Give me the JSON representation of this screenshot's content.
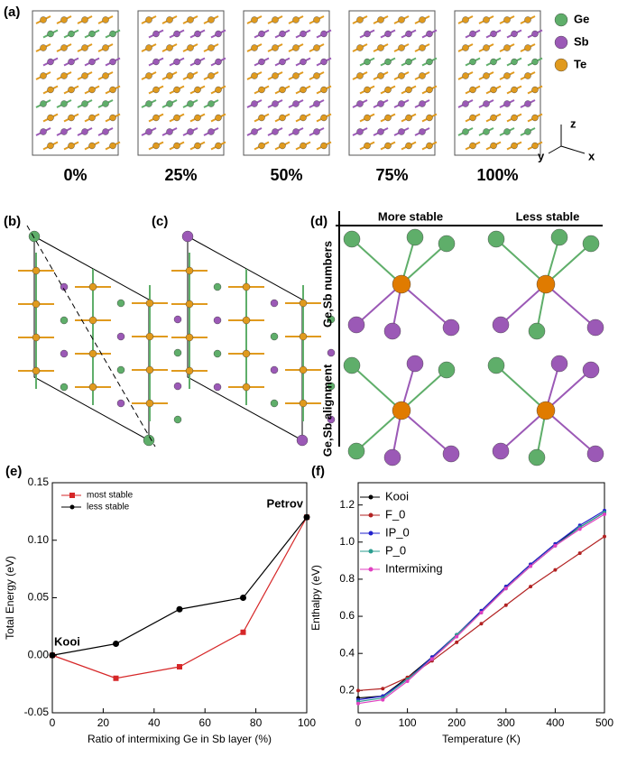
{
  "figure": {
    "panel_a": {
      "label": "(a)",
      "ratios": [
        "0%",
        "25%",
        "50%",
        "75%",
        "100%"
      ],
      "legend": [
        "Ge",
        "Sb",
        "Te"
      ],
      "axes": [
        "z",
        "y",
        "x"
      ]
    },
    "panel_b": {
      "label": "(b)"
    },
    "panel_c": {
      "label": "(c)"
    },
    "panel_d": {
      "label": "(d)",
      "columns": [
        "More stable",
        "Less stable"
      ],
      "rows": [
        "Ge,Sb numbers",
        "Ge,Sb alignment"
      ]
    }
  },
  "chart_data": [
    {
      "type": "line",
      "label": "(e)",
      "x_label": "Ratio of intermixing Ge in Sb layer (%)",
      "y_label": "Total Energy (eV)",
      "x": [
        0,
        25,
        50,
        75,
        100
      ],
      "series": [
        {
          "name": "most stable",
          "color": "#d62728",
          "marker": "square",
          "values": [
            0,
            -0.02,
            -0.01,
            0.02,
            0.12
          ]
        },
        {
          "name": "less stable",
          "color": "#000000",
          "marker": "circle",
          "values": [
            0,
            0.01,
            0.04,
            0.05,
            0.12
          ]
        }
      ],
      "annotations": [
        "Kooi",
        "Petrov"
      ],
      "xlim": [
        0,
        100
      ],
      "xticks": [
        0,
        20,
        40,
        60,
        80,
        100
      ],
      "ylim": [
        -0.05,
        0.15
      ],
      "yticks": [
        -0.05,
        {
          "value": 0,
          "label": "0.00"
        },
        0.05,
        {
          "value": 0.1,
          "label": "0.10"
        },
        0.15
      ],
      "legend": "upper left"
    },
    {
      "type": "line",
      "label": "(f)",
      "x_label": "Temperature (K)",
      "y_label": "Enthalpy (eV)",
      "x": [
        0,
        50,
        100,
        150,
        200,
        250,
        300,
        350,
        400,
        450,
        500
      ],
      "series": [
        {
          "name": "Kooi",
          "color": "#000000",
          "marker": "circle",
          "values": [
            0.16,
            0.17,
            0.27,
            0.38,
            0.5,
            0.63,
            0.76,
            0.88,
            0.99,
            1.08,
            1.16
          ]
        },
        {
          "name": "F_0",
          "color": "#b22222",
          "marker": "circle",
          "values": [
            0.2,
            0.21,
            0.27,
            0.36,
            0.46,
            0.56,
            0.66,
            0.76,
            0.85,
            0.94,
            1.03
          ]
        },
        {
          "name": "IP_0",
          "color": "#2222cc",
          "marker": "circle",
          "values": [
            0.15,
            0.17,
            0.26,
            0.38,
            0.5,
            0.63,
            0.76,
            0.88,
            0.99,
            1.09,
            1.17
          ]
        },
        {
          "name": "P_0",
          "color": "#2a9d8f",
          "marker": "circle",
          "values": [
            0.14,
            0.16,
            0.26,
            0.37,
            0.5,
            0.62,
            0.75,
            0.87,
            0.98,
            1.08,
            1.16
          ]
        },
        {
          "name": "Intermixing",
          "color": "#e040c0",
          "marker": "circle",
          "values": [
            0.13,
            0.15,
            0.25,
            0.37,
            0.49,
            0.62,
            0.75,
            0.87,
            0.98,
            1.07,
            1.15
          ]
        }
      ],
      "xlim": [
        0,
        500
      ],
      "xticks": [
        0,
        100,
        200,
        300,
        400,
        500
      ],
      "ylim": [
        0.08,
        1.32
      ],
      "yticks": [
        0.2,
        0.4,
        0.6,
        0.8,
        {
          "value": 1,
          "label": "1.0"
        },
        1.2
      ],
      "legend": "upper left"
    }
  ]
}
